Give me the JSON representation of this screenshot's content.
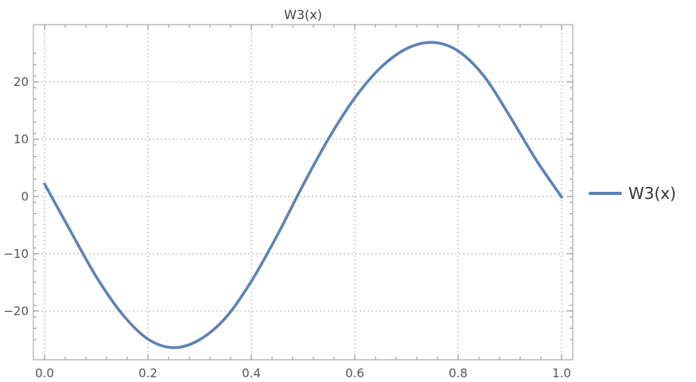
{
  "chart_data": {
    "type": "line",
    "title": "W3(x)",
    "xlabel": "",
    "ylabel": "",
    "xlim": [
      0.0,
      1.0
    ],
    "ylim": [
      -28.5,
      30.0
    ],
    "xticks": [
      0.0,
      0.2,
      0.4,
      0.6,
      0.8,
      1.0
    ],
    "xtick_labels": [
      "0.0",
      "0.2",
      "0.4",
      "0.6",
      "0.8",
      "1.0"
    ],
    "yticks": [
      -20,
      -10,
      0,
      10,
      20
    ],
    "ytick_labels": [
      "−20",
      "−10",
      "0",
      "10",
      "20"
    ],
    "grid": true,
    "legend_position": "right",
    "series": [
      {
        "name": "W3(x)",
        "color": "#5e81b5",
        "x": [
          0.0,
          0.05,
          0.1,
          0.15,
          0.2,
          0.25,
          0.3,
          0.35,
          0.4,
          0.45,
          0.5,
          0.55,
          0.6,
          0.65,
          0.7,
          0.75,
          0.8,
          0.85,
          0.9,
          0.95,
          1.0
        ],
        "y": [
          2.2,
          -6.0,
          -14.0,
          -20.5,
          -24.9,
          -26.4,
          -25.0,
          -21.2,
          -14.8,
          -6.8,
          2.0,
          10.2,
          17.2,
          22.5,
          25.8,
          26.9,
          25.4,
          21.0,
          14.0,
          6.5,
          -0.1
        ]
      }
    ]
  }
}
